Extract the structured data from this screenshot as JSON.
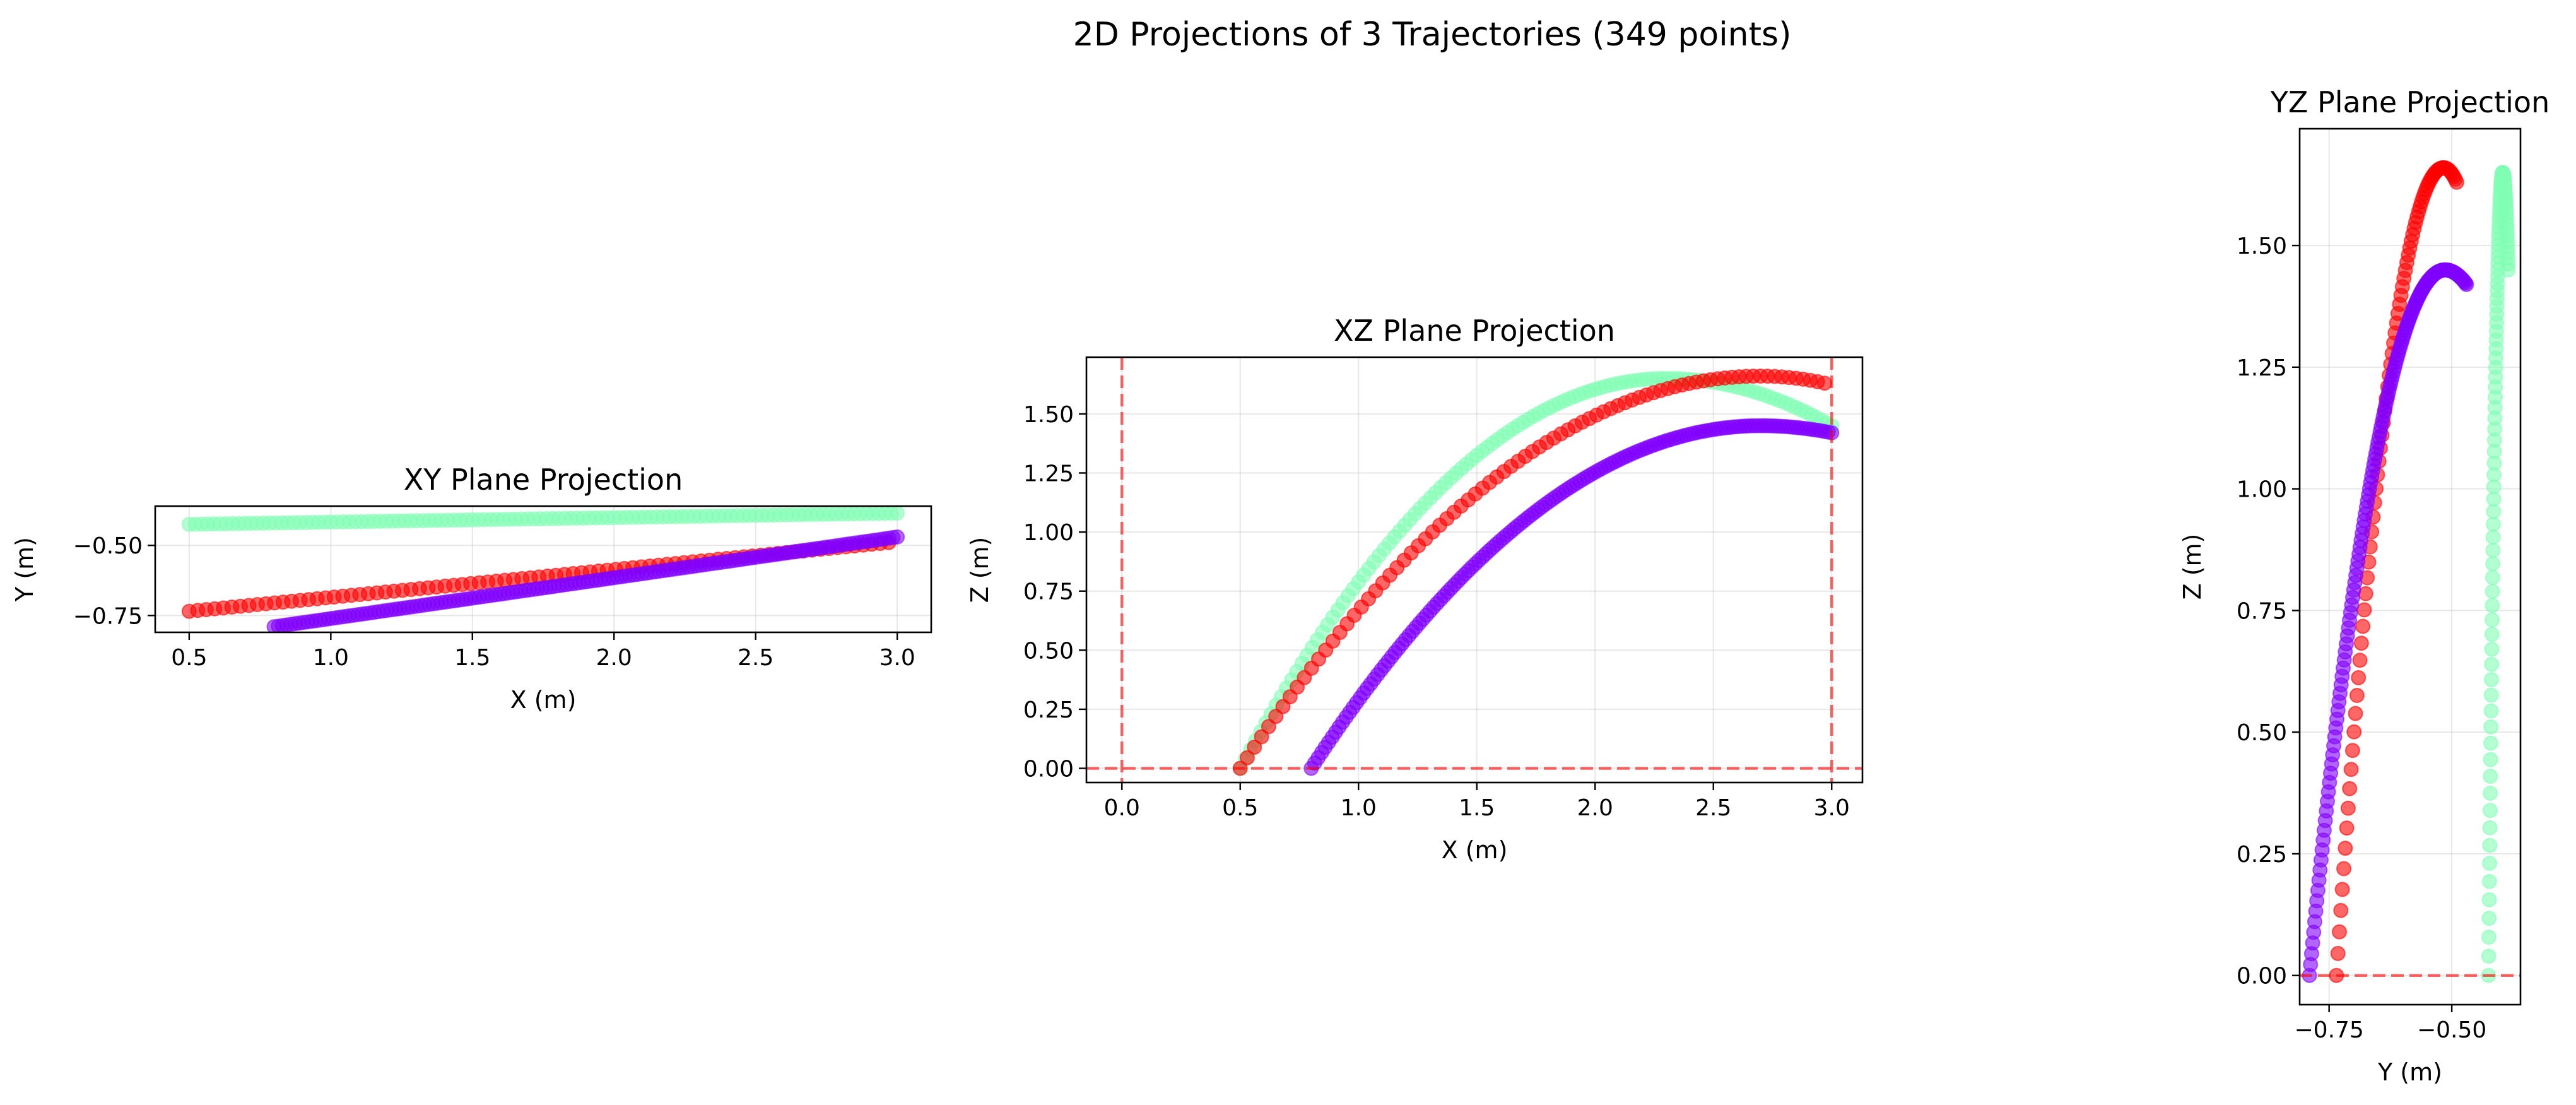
{
  "figure": {
    "title": "2D Projections of 3 Trajectories (349 points)"
  },
  "chart_data": [
    {
      "type": "scatter",
      "id": "xy",
      "title": "XY Plane Projection",
      "xlabel": "X (m)",
      "ylabel": "Y (m)",
      "xlim": [
        0.38,
        3.12
      ],
      "ylim": [
        -0.81,
        -0.36
      ],
      "xticks": [
        0.5,
        1.0,
        1.5,
        2.0,
        2.5,
        3.0
      ],
      "xtick_labels": [
        "0.5",
        "1.0",
        "1.5",
        "2.0",
        "2.5",
        "3.0"
      ],
      "yticks": [
        -0.5,
        -0.75
      ],
      "ytick_labels": [
        "−0.50",
        "−0.75"
      ],
      "grid": true,
      "ref_lines": [],
      "series": [
        {
          "color": "#80ffb4",
          "x_range": [
            0.5,
            3.0
          ],
          "y_range": [
            -0.425,
            -0.385
          ],
          "count": 116,
          "z_peak": 1.65,
          "z_end": 1.45,
          "x_peak": 2.3
        },
        {
          "color": "#ff0000",
          "x_range": [
            0.5,
            2.97
          ],
          "y_range": [
            -0.735,
            -0.49
          ],
          "count": 83,
          "z_peak": 1.66,
          "z_end": 1.63,
          "x_peak": 2.7
        },
        {
          "color": "#8000ff",
          "x_range": [
            0.8,
            3.0
          ],
          "y_range": [
            -0.79,
            -0.47
          ],
          "count": 150,
          "z_peak": 1.45,
          "z_end": 1.42,
          "x_peak": 2.7
        }
      ]
    },
    {
      "type": "scatter",
      "id": "xz",
      "title": "XZ Plane Projection",
      "xlabel": "X (m)",
      "ylabel": "Z (m)",
      "xlim": [
        -0.15,
        3.13
      ],
      "ylim": [
        -0.06,
        1.74
      ],
      "xticks": [
        0.0,
        0.5,
        1.0,
        1.5,
        2.0,
        2.5,
        3.0
      ],
      "xtick_labels": [
        "0.0",
        "0.5",
        "1.0",
        "1.5",
        "2.0",
        "2.5",
        "3.0"
      ],
      "yticks": [
        0.0,
        0.25,
        0.5,
        0.75,
        1.0,
        1.25,
        1.5
      ],
      "ytick_labels": [
        "0.00",
        "0.25",
        "0.50",
        "0.75",
        "1.00",
        "1.25",
        "1.50"
      ],
      "grid": true,
      "ref_lines": [
        {
          "axis": "x",
          "value": 0.0
        },
        {
          "axis": "x",
          "value": 3.0
        },
        {
          "axis": "y",
          "value": 0.0
        }
      ]
    },
    {
      "type": "scatter",
      "id": "yz",
      "title": "YZ Plane Projection",
      "xlabel": "Y (m)",
      "ylabel": "Z (m)",
      "xlim": [
        -0.81,
        -0.36
      ],
      "ylim": [
        -0.06,
        1.74
      ],
      "xticks": [
        -0.75,
        -0.5
      ],
      "xtick_labels": [
        "−0.75",
        "−0.50"
      ],
      "yticks": [
        0.0,
        0.25,
        0.5,
        0.75,
        1.0,
        1.25,
        1.5
      ],
      "ytick_labels": [
        "0.00",
        "0.25",
        "0.50",
        "0.75",
        "1.00",
        "1.25",
        "1.50"
      ],
      "grid": true,
      "ref_lines": [
        {
          "axis": "y",
          "value": 0.0
        }
      ]
    }
  ]
}
